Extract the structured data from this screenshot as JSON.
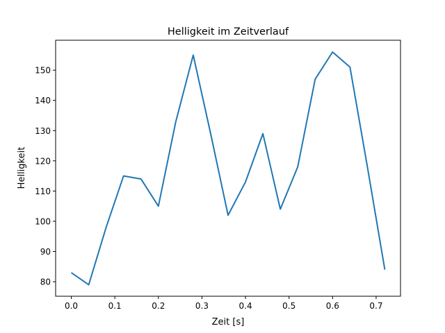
{
  "chart_data": {
    "type": "line",
    "title": "Helligkeit im Zeitverlauf",
    "xlabel": "Zeit [s]",
    "ylabel": "Helligkeit",
    "xlim": [
      -0.036,
      0.756
    ],
    "ylim": [
      75.2,
      159.9
    ],
    "xticks": [
      0.0,
      0.1,
      0.2,
      0.3,
      0.4,
      0.5,
      0.6,
      0.7
    ],
    "xtick_labels": [
      "0.0",
      "0.1",
      "0.2",
      "0.3",
      "0.4",
      "0.5",
      "0.6",
      "0.7"
    ],
    "yticks": [
      80,
      90,
      100,
      110,
      120,
      130,
      140,
      150
    ],
    "ytick_labels": [
      "80",
      "90",
      "100",
      "110",
      "120",
      "130",
      "140",
      "150"
    ],
    "grid": false,
    "series": [
      {
        "name": "Helligkeit",
        "color": "#1f77b4",
        "x": [
          0.0,
          0.04,
          0.08,
          0.12,
          0.16,
          0.2,
          0.24,
          0.28,
          0.32,
          0.36,
          0.4,
          0.44,
          0.48,
          0.52,
          0.56,
          0.6,
          0.64,
          0.68,
          0.72
        ],
        "y": [
          83,
          79,
          98,
          115,
          114,
          105,
          133,
          155,
          129,
          102,
          113,
          129,
          104,
          118,
          147,
          156,
          151,
          118,
          84
        ]
      }
    ]
  }
}
